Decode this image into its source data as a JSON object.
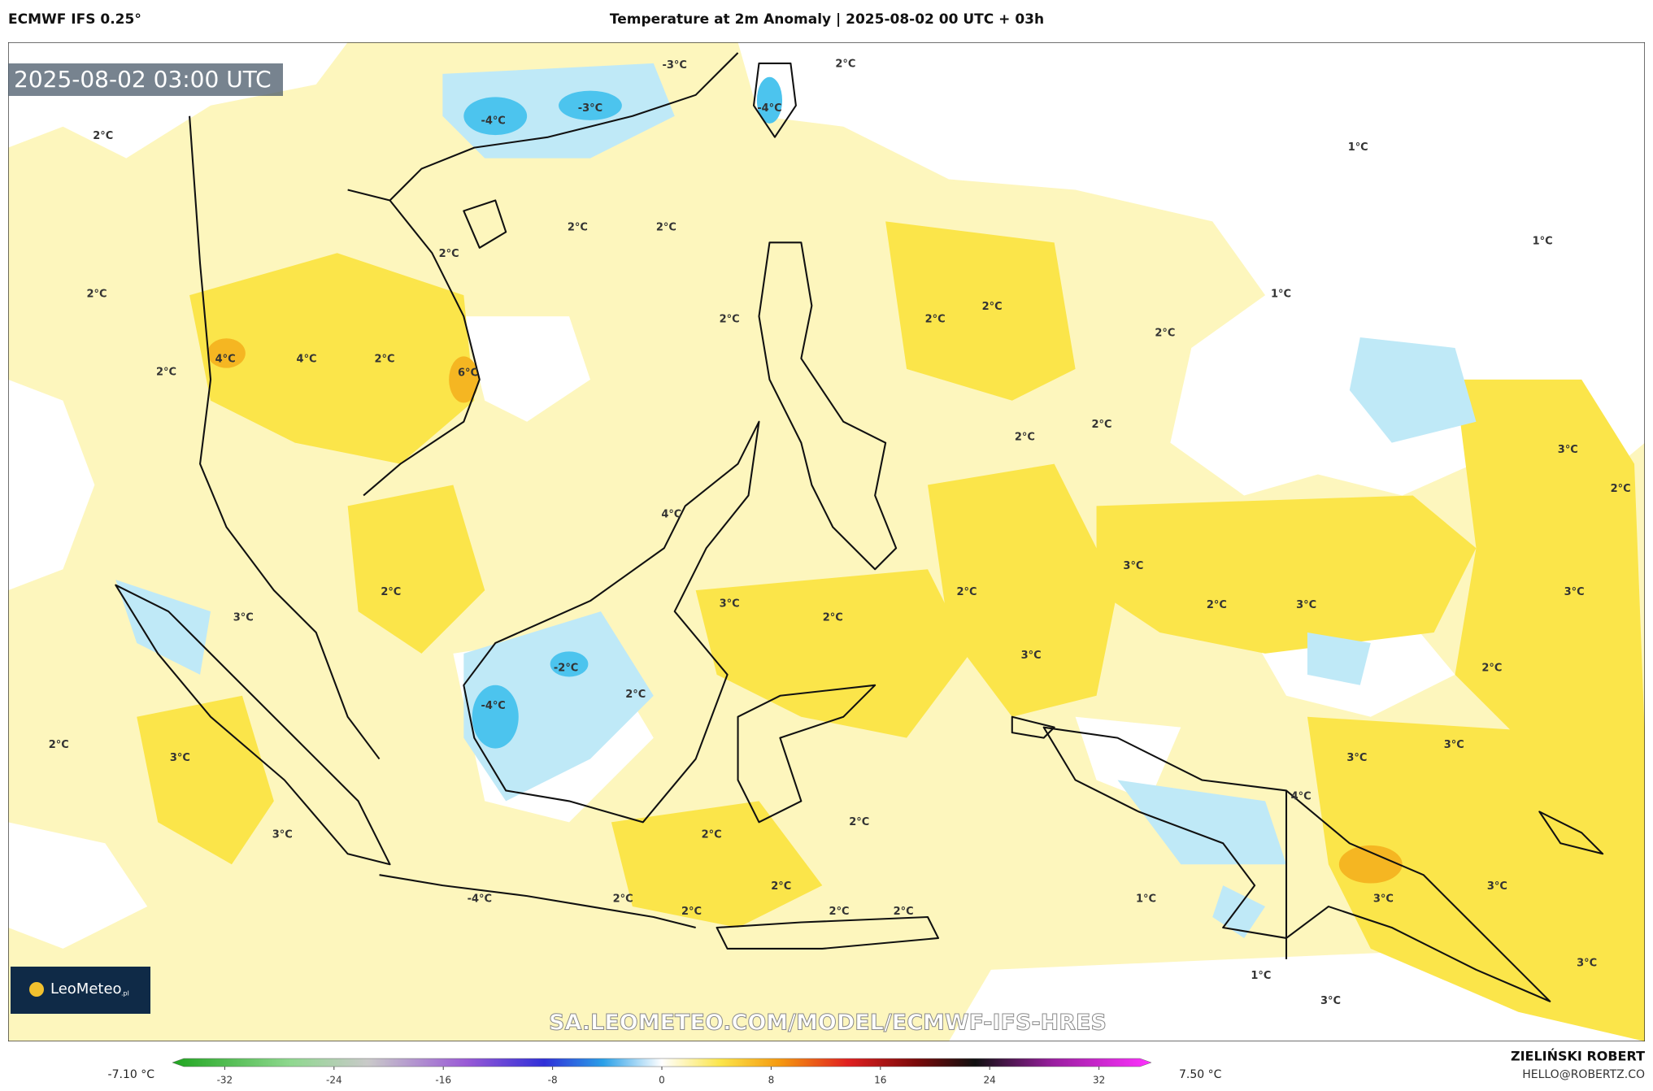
{
  "header": {
    "model": "ECMWF IFS 0.25°",
    "title": "Temperature at 2m Anomaly | 2025-08-02 00 UTC + 03h"
  },
  "map": {
    "timestamp": "2025-08-02 03:00 UTC",
    "contour_labels": [
      "-3°C",
      "2°C",
      "-4°C",
      "-3°C",
      "-4°C",
      "2°C",
      "1°C",
      "2°C",
      "2°C",
      "2°C",
      "1°C",
      "2°C",
      "1°C",
      "2°C",
      "2°C",
      "2°C",
      "2°C",
      "2°C",
      "4°C",
      "4°C",
      "2°C",
      "6°C",
      "2°C",
      "2°C",
      "3°C",
      "2°C",
      "4°C",
      "3°C",
      "2°C",
      "3°C",
      "3°C",
      "2°C",
      "2°C",
      "2°C",
      "3°C",
      "3°C",
      "3°C",
      "-2°C",
      "2°C",
      "-4°C",
      "2°C",
      "2°C",
      "3°C",
      "3°C",
      "3°C",
      "4°C",
      "3°C",
      "2°C",
      "2°C",
      "2°C",
      "1°C",
      "3°C",
      "3°C",
      "-4°C",
      "2°C",
      "2°C",
      "2°C",
      "2°C",
      "1°C",
      "3°C",
      "3°C"
    ],
    "watermark": "SA.LEOMETEO.COM/MODEL/ECMWF-IFS-HRES",
    "logo": {
      "brand": "LeoMeteo",
      "suffix": ".pl"
    }
  },
  "colorbar": {
    "min_label": "-7.10 °C",
    "max_label": "7.50 °C",
    "lim": [
      -35,
      35
    ],
    "ticks": [
      -32,
      -24,
      -16,
      -8,
      0,
      8,
      16,
      24,
      32
    ]
  },
  "footer": {
    "author": "ZIELIŃSKI ROBERT",
    "email": "HELLO@ROBERTZ.CO"
  }
}
